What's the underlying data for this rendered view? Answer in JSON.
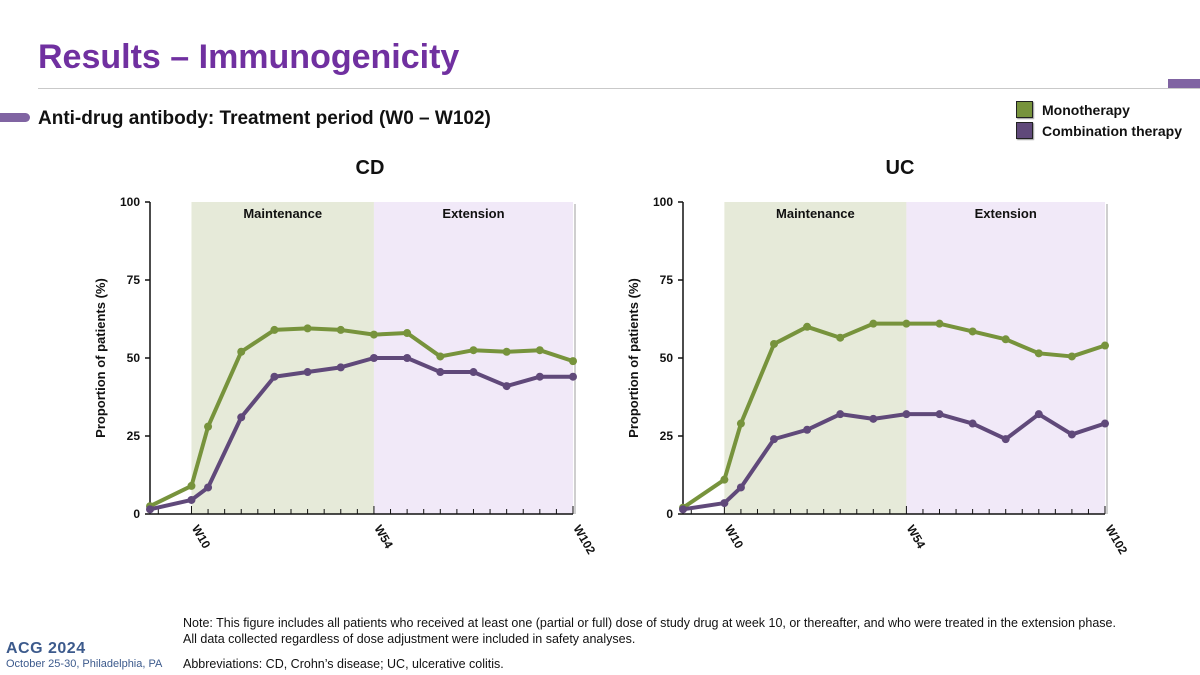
{
  "header": {
    "title": "Results – Immunogenicity",
    "subtitle": "Anti-drug antibody: Treatment period (W0 – W102)"
  },
  "legend": [
    {
      "label": "Monotherapy",
      "color": "#77933c"
    },
    {
      "label": "Combination therapy",
      "color": "#60497a"
    }
  ],
  "chart_data": [
    {
      "type": "line",
      "title": "CD",
      "ylabel": "Proportion of patients (%)",
      "ylim": [
        0,
        100
      ],
      "yticks": [
        0,
        25,
        50,
        75,
        100
      ],
      "x_tick_labels": [
        "W10",
        "W54",
        "W102"
      ],
      "regions": [
        "Maintenance",
        "Extension"
      ],
      "series": [
        {
          "name": "Monotherapy",
          "color": "#77933c",
          "points": [
            [
              0,
              2.5
            ],
            [
              10,
              9
            ],
            [
              14,
              28
            ],
            [
              22,
              52
            ],
            [
              30,
              59
            ],
            [
              38,
              59.5
            ],
            [
              46,
              59
            ],
            [
              54,
              57.5
            ],
            [
              62,
              58
            ],
            [
              70,
              50.5
            ],
            [
              78,
              52.5
            ],
            [
              86,
              52
            ],
            [
              94,
              52.5
            ],
            [
              102,
              49
            ]
          ]
        },
        {
          "name": "Combination therapy",
          "color": "#60497a",
          "points": [
            [
              0,
              1.5
            ],
            [
              10,
              4.5
            ],
            [
              14,
              8.5
            ],
            [
              22,
              31
            ],
            [
              30,
              44
            ],
            [
              38,
              45.5
            ],
            [
              46,
              47
            ],
            [
              54,
              50
            ],
            [
              62,
              50
            ],
            [
              70,
              45.5
            ],
            [
              78,
              45.5
            ],
            [
              86,
              41
            ],
            [
              94,
              44
            ],
            [
              102,
              44
            ]
          ]
        }
      ]
    },
    {
      "type": "line",
      "title": "UC",
      "ylabel": "Proportion of patients (%)",
      "ylim": [
        0,
        100
      ],
      "yticks": [
        0,
        25,
        50,
        75,
        100
      ],
      "x_tick_labels": [
        "W10",
        "W54",
        "W102"
      ],
      "regions": [
        "Maintenance",
        "Extension"
      ],
      "series": [
        {
          "name": "Monotherapy",
          "color": "#77933c",
          "points": [
            [
              0,
              2
            ],
            [
              10,
              11
            ],
            [
              14,
              29
            ],
            [
              22,
              54.5
            ],
            [
              30,
              60
            ],
            [
              38,
              56.5
            ],
            [
              46,
              61
            ],
            [
              54,
              61
            ],
            [
              62,
              61
            ],
            [
              70,
              58.5
            ],
            [
              78,
              56
            ],
            [
              86,
              51.5
            ],
            [
              94,
              50.5
            ],
            [
              102,
              54
            ]
          ]
        },
        {
          "name": "Combination therapy",
          "color": "#60497a",
          "points": [
            [
              0,
              1.5
            ],
            [
              10,
              3.5
            ],
            [
              14,
              8.5
            ],
            [
              22,
              24
            ],
            [
              30,
              27
            ],
            [
              38,
              32
            ],
            [
              46,
              30.5
            ],
            [
              54,
              32
            ],
            [
              62,
              32
            ],
            [
              70,
              29
            ],
            [
              78,
              24
            ],
            [
              86,
              32
            ],
            [
              94,
              25.5
            ],
            [
              102,
              29
            ]
          ]
        }
      ]
    }
  ],
  "footer": {
    "note_line1": "Note: This figure includes all patients who received at least one (partial or full) dose of study drug at week 10, or thereafter, and who were treated in the extension phase.",
    "note_line2": "All data collected regardless of dose adjustment were included in safety analyses.",
    "abbreviations": "Abbreviations: CD, Crohn’s disease; UC, ulcerative colitis.",
    "logo": "ACG 2024",
    "event": "October 25-30, Philadelphia, PA"
  }
}
